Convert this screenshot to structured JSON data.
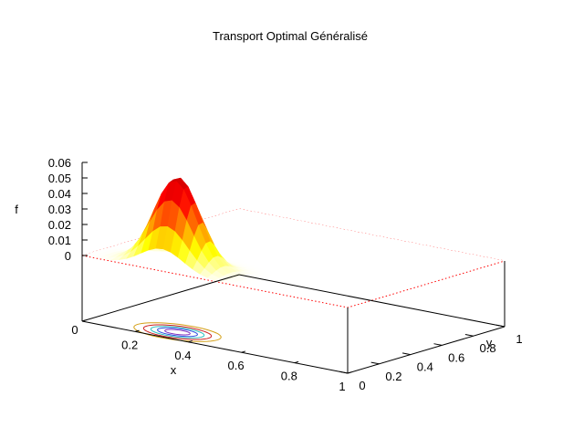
{
  "chart_data": {
    "type": "surface-3d",
    "title": "Transport Optimal Généralisé",
    "xlabel": "x",
    "ylabel": "y",
    "zlabel": "f",
    "xlim": [
      0,
      1
    ],
    "ylim": [
      0,
      1
    ],
    "zlim": [
      0,
      0.06
    ],
    "x_ticks": [
      "0",
      "0.2",
      "0.4",
      "0.6",
      "0.8",
      "1"
    ],
    "y_ticks": [
      "0",
      "0.2",
      "0.4",
      "0.6",
      "0.8",
      "1"
    ],
    "z_ticks": [
      "0",
      "0.01",
      "0.02",
      "0.03",
      "0.04",
      "0.05",
      "0.06"
    ],
    "peak": {
      "x": 0.3,
      "y": 0.1,
      "f": 0.058
    },
    "spread": {
      "x": 0.08,
      "y": 0.06
    },
    "contour_levels": [
      0.01,
      0.02,
      0.03,
      0.04,
      0.05
    ],
    "palette": [
      "#ffffff",
      "#ffff00",
      "#ff8000",
      "#ff0000",
      "#cc0000"
    ],
    "contour_colors": [
      "#d4a017",
      "#cc2222",
      "#30c0c0",
      "#3050e0",
      "#8030c0"
    ],
    "box_color": "#ff0000",
    "grid": false
  }
}
